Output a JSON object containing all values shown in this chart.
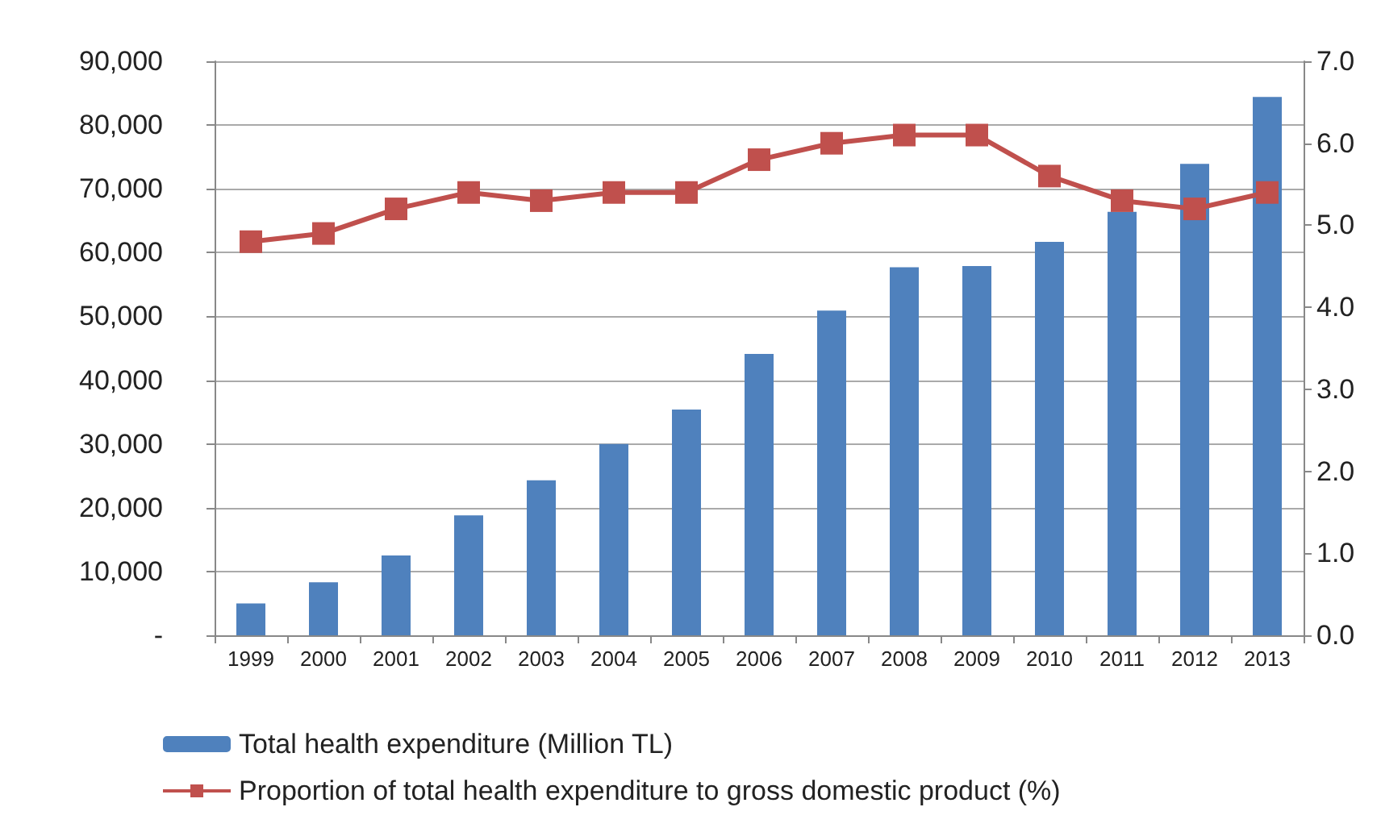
{
  "chart_data": {
    "type": "bar",
    "categories": [
      "1999",
      "2000",
      "2001",
      "2002",
      "2003",
      "2004",
      "2005",
      "2006",
      "2007",
      "2008",
      "2009",
      "2010",
      "2011",
      "2012",
      "2013"
    ],
    "series": [
      {
        "name": "Total health expenditure (Million TL)",
        "color": "#4f81bd",
        "values": [
          5000,
          8300,
          12500,
          18800,
          24300,
          30000,
          35400,
          44100,
          50900,
          57700,
          57900,
          61700,
          66400,
          73900,
          84400
        ]
      },
      {
        "name": "Proportion of total health expenditure to gross domestic product (%)",
        "type": "line",
        "axis": "y2",
        "color": "#c0504d",
        "marker": "square",
        "values": [
          4.8,
          4.9,
          5.2,
          5.4,
          5.3,
          5.4,
          5.4,
          5.8,
          6.0,
          6.1,
          6.1,
          5.6,
          5.3,
          5.2,
          5.4
        ]
      }
    ],
    "ylim": [
      0,
      90000
    ],
    "yticks": [
      {
        "value": 0,
        "label": "-"
      },
      {
        "value": 10000,
        "label": "10,000"
      },
      {
        "value": 20000,
        "label": "20,000"
      },
      {
        "value": 30000,
        "label": "30,000"
      },
      {
        "value": 40000,
        "label": "40,000"
      },
      {
        "value": 50000,
        "label": "50,000"
      },
      {
        "value": 60000,
        "label": "60,000"
      },
      {
        "value": 70000,
        "label": "70,000"
      },
      {
        "value": 80000,
        "label": "80,000"
      },
      {
        "value": 90000,
        "label": "90,000"
      }
    ],
    "y2lim": [
      0,
      7
    ],
    "y2ticks": [
      {
        "value": 0,
        "label": "0.0"
      },
      {
        "value": 1,
        "label": "1.0"
      },
      {
        "value": 2,
        "label": "2.0"
      },
      {
        "value": 3,
        "label": "3.0"
      },
      {
        "value": 4,
        "label": "4.0"
      },
      {
        "value": 5,
        "label": "5.0"
      },
      {
        "value": 6,
        "label": "6.0"
      },
      {
        "value": 7,
        "label": "7.0"
      }
    ],
    "grid": "y",
    "legend": "bottom"
  }
}
